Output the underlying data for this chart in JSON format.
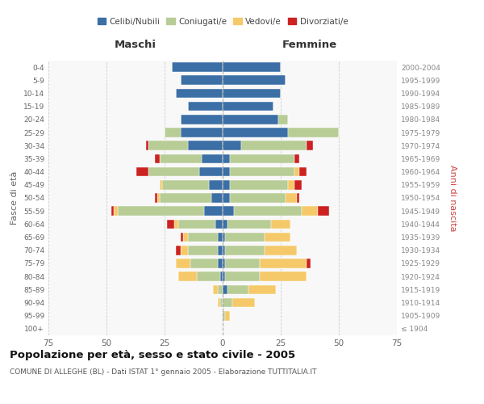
{
  "age_groups": [
    "100+",
    "95-99",
    "90-94",
    "85-89",
    "80-84",
    "75-79",
    "70-74",
    "65-69",
    "60-64",
    "55-59",
    "50-54",
    "45-49",
    "40-44",
    "35-39",
    "30-34",
    "25-29",
    "20-24",
    "15-19",
    "10-14",
    "5-9",
    "0-4"
  ],
  "birth_years": [
    "≤ 1904",
    "1905-1909",
    "1910-1914",
    "1915-1919",
    "1920-1924",
    "1925-1929",
    "1930-1934",
    "1935-1939",
    "1940-1944",
    "1945-1949",
    "1950-1954",
    "1955-1959",
    "1960-1964",
    "1965-1969",
    "1970-1974",
    "1975-1979",
    "1980-1984",
    "1985-1989",
    "1990-1994",
    "1995-1999",
    "2000-2004"
  ],
  "male_celibi": [
    0,
    0,
    0,
    0,
    1,
    2,
    2,
    2,
    3,
    8,
    5,
    6,
    10,
    9,
    15,
    18,
    18,
    15,
    20,
    18,
    22
  ],
  "male_coniugati": [
    0,
    0,
    1,
    2,
    10,
    12,
    13,
    13,
    16,
    37,
    22,
    20,
    22,
    18,
    17,
    7,
    0,
    0,
    0,
    0,
    0
  ],
  "male_vedovi": [
    0,
    0,
    1,
    2,
    8,
    6,
    3,
    2,
    2,
    2,
    1,
    1,
    0,
    0,
    0,
    0,
    0,
    0,
    0,
    0,
    0
  ],
  "male_divorziati": [
    0,
    0,
    0,
    0,
    0,
    0,
    2,
    1,
    3,
    1,
    1,
    0,
    5,
    2,
    1,
    0,
    0,
    0,
    0,
    0,
    0
  ],
  "female_nubili": [
    0,
    0,
    0,
    2,
    1,
    1,
    1,
    1,
    2,
    5,
    3,
    3,
    3,
    3,
    8,
    28,
    24,
    22,
    25,
    27,
    25
  ],
  "female_coniugate": [
    0,
    1,
    4,
    9,
    15,
    15,
    17,
    17,
    19,
    29,
    24,
    25,
    28,
    28,
    28,
    22,
    4,
    0,
    0,
    0,
    0
  ],
  "female_vedove": [
    0,
    2,
    10,
    12,
    20,
    20,
    14,
    11,
    8,
    7,
    5,
    3,
    2,
    0,
    0,
    0,
    0,
    0,
    0,
    0,
    0
  ],
  "female_divorziate": [
    0,
    0,
    0,
    0,
    0,
    2,
    0,
    0,
    0,
    5,
    1,
    3,
    3,
    2,
    3,
    0,
    0,
    0,
    0,
    0,
    0
  ],
  "colors": {
    "celibi": "#3b6fa5",
    "coniugati": "#b8cc96",
    "vedovi": "#f5c96a",
    "divorziati": "#cc2222"
  },
  "xlim": 75,
  "title": "Popolazione per età, sesso e stato civile - 2005",
  "subtitle": "COMUNE DI ALLEGHE (BL) - Dati ISTAT 1° gennaio 2005 - Elaborazione TUTTITALIA.IT",
  "ylabel_left": "Fasce di età",
  "ylabel_right": "Anni di nascita",
  "xlabel_male": "Maschi",
  "xlabel_female": "Femmine",
  "bg_color": "#f8f8f8",
  "grid_color": "#cccccc"
}
